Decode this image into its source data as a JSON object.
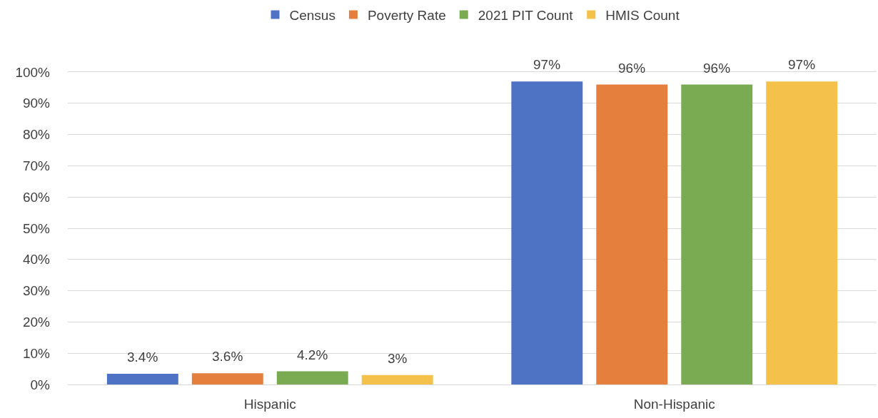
{
  "chart_data": {
    "type": "bar",
    "categories": [
      "Hispanic",
      "Non-Hispanic"
    ],
    "series": [
      {
        "name": "Census",
        "color": "#4e72c4",
        "values": [
          3.4,
          97
        ],
        "value_labels": [
          "3.4%",
          "97%"
        ]
      },
      {
        "name": "Poverty Rate",
        "color": "#e57f3e",
        "values": [
          3.6,
          96
        ],
        "value_labels": [
          "3.6%",
          "96%"
        ]
      },
      {
        "name": "2021 PIT Count",
        "color": "#7aab52",
        "values": [
          4.2,
          96
        ],
        "value_labels": [
          "4.2%",
          "96%"
        ]
      },
      {
        "name": "HMIS Count",
        "color": "#f4c24a",
        "values": [
          3,
          97
        ],
        "value_labels": [
          "3%",
          "97%"
        ]
      }
    ],
    "ylim": [
      0,
      100
    ],
    "yticks": [
      {
        "value": 0,
        "label": "0%"
      },
      {
        "value": 10,
        "label": "10%"
      },
      {
        "value": 20,
        "label": "20%"
      },
      {
        "value": 30,
        "label": "30%"
      },
      {
        "value": 40,
        "label": "40%"
      },
      {
        "value": 50,
        "label": "50%"
      },
      {
        "value": 60,
        "label": "60%"
      },
      {
        "value": 70,
        "label": "70%"
      },
      {
        "value": 80,
        "label": "80%"
      },
      {
        "value": 90,
        "label": "90%"
      },
      {
        "value": 100,
        "label": "100%"
      }
    ],
    "grid": "y",
    "legend": "top"
  }
}
